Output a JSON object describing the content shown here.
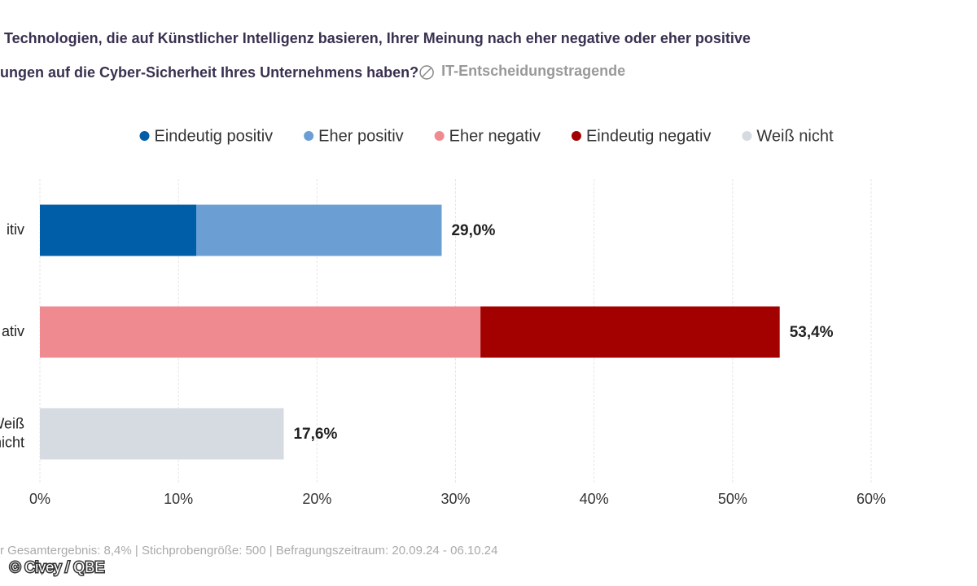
{
  "chart_data": {
    "type": "stacked-bar-horizontal",
    "title_lines": [
      "Technologien, die auf Künstlicher Intelligenz basieren, Ihrer Meinung nach eher negative oder eher positive",
      "ungen auf die Cyber-Sicherheit Ihres Unternehmens haben?"
    ],
    "subtitle": "IT-Entscheidungstragende",
    "categories": [
      [
        "itiv"
      ],
      [
        "ativ"
      ],
      [
        "Weiß",
        "nicht"
      ]
    ],
    "series": [
      {
        "name": "Eindeutig positiv",
        "color": "#005ea8",
        "values": [
          11.3,
          null,
          null
        ]
      },
      {
        "name": "Eher positiv",
        "color": "#6b9fd4",
        "values": [
          17.7,
          null,
          null
        ]
      },
      {
        "name": "Eher negativ",
        "color": "#ef8a91",
        "values": [
          null,
          31.8,
          null
        ]
      },
      {
        "name": "Eindeutig negativ",
        "color": "#a30000",
        "values": [
          null,
          21.6,
          null
        ]
      },
      {
        "name": "Weiß nicht",
        "color": "#d5dbe1",
        "values": [
          null,
          null,
          17.6
        ]
      }
    ],
    "totals": [
      29.0,
      53.4,
      17.6
    ],
    "total_labels": [
      "29,0%",
      "53,4%",
      "17,6%"
    ],
    "xlim": [
      0,
      60
    ],
    "xticks": [
      {
        "value": 0,
        "label": "0%"
      },
      {
        "value": 10,
        "label": "10%"
      },
      {
        "value": 20,
        "label": "20%"
      },
      {
        "value": 30,
        "label": "30%"
      },
      {
        "value": 40,
        "label": "40%"
      },
      {
        "value": 50,
        "label": "50%"
      },
      {
        "value": 60,
        "label": "60%"
      }
    ],
    "grid": true,
    "footer": "r Gesamtergebnis: 8,4% | Stichprobengröße: 500 | Befragungszeitraum: 20.09.24 - 06.10.24",
    "source": "© Civey / QBE"
  }
}
